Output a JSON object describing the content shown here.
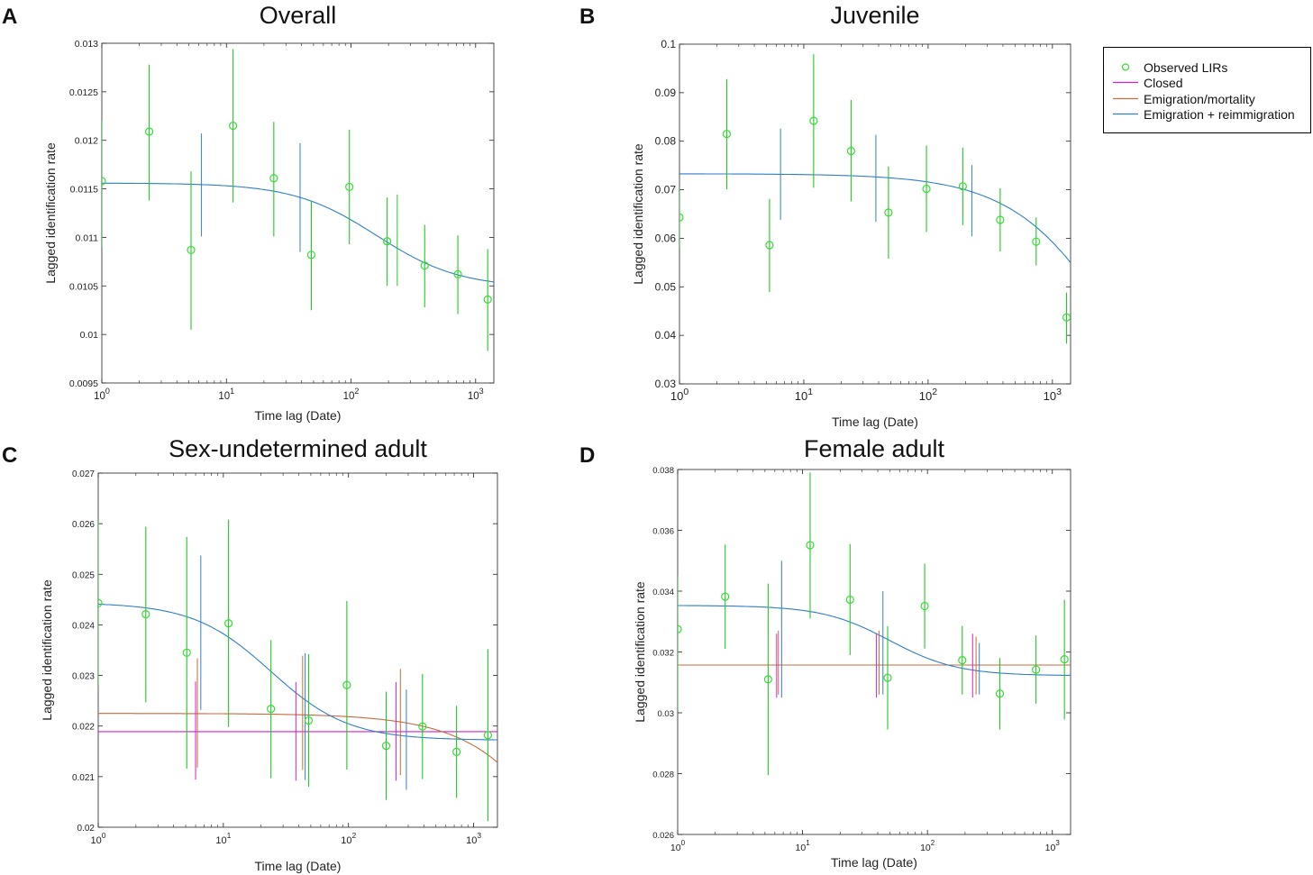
{
  "legend": {
    "observed": "Observed LIRs",
    "closed": "Closed",
    "emig_mort": "Emigration/mortality",
    "emig_reimm": "Emigration + reimmigration"
  },
  "colors": {
    "observed": "#33dd33",
    "observed_bar": "#22c922",
    "closed": "#d020d0",
    "emig_mort": "#c86a3a",
    "emig_reimm": "#2f7fc8"
  },
  "chart_data": [
    {
      "type": "scatter",
      "panel_letter": "A",
      "title": "Overall",
      "xlabel": "Time lag (Date)",
      "ylabel": "Lagged identification rate",
      "xscale": "log",
      "xlim": [
        1,
        1400
      ],
      "ylim": [
        0.0095,
        0.013
      ],
      "yticks": [
        0.0095,
        0.01,
        0.0105,
        0.011,
        0.0115,
        0.012,
        0.0125,
        0.013
      ],
      "ytick_labels": [
        "0.0095",
        "0.01",
        "0.0105",
        "0.011",
        "0.0115",
        "0.012",
        "0.0125",
        "0.013"
      ],
      "xtick_labels": [
        "10^0",
        "10^1",
        "10^2",
        "10^3"
      ],
      "observed": [
        {
          "x": 1.0,
          "y": 0.01158,
          "lo": 0.0109,
          "hi": 0.0122
        },
        {
          "x": 2.4,
          "y": 0.01209,
          "lo": 0.01138,
          "hi": 0.01278
        },
        {
          "x": 5.2,
          "y": 0.01087,
          "lo": 0.01005,
          "hi": 0.01168
        },
        {
          "x": 11.3,
          "y": 0.01215,
          "lo": 0.01136,
          "hi": 0.01294
        },
        {
          "x": 24,
          "y": 0.01161,
          "lo": 0.01101,
          "hi": 0.01219
        },
        {
          "x": 48,
          "y": 0.01082,
          "lo": 0.01025,
          "hi": 0.01138
        },
        {
          "x": 97,
          "y": 0.01152,
          "lo": 0.01093,
          "hi": 0.01211
        },
        {
          "x": 195,
          "y": 0.01096,
          "lo": 0.0105,
          "hi": 0.01141
        },
        {
          "x": 390,
          "y": 0.01071,
          "lo": 0.01028,
          "hi": 0.01113
        },
        {
          "x": 720,
          "y": 0.01062,
          "lo": 0.01021,
          "hi": 0.01102
        },
        {
          "x": 1250,
          "y": 0.01036,
          "lo": 0.00983,
          "hi": 0.01088
        }
      ],
      "model_bars": [
        {
          "series": "emig_reimm",
          "x": 6.3,
          "lo": 0.01101,
          "hi": 0.01207
        },
        {
          "series": "emig_reimm",
          "x": 39,
          "lo": 0.01085,
          "hi": 0.01197
        },
        {
          "series": "observed",
          "x": 235,
          "lo": 0.0105,
          "hi": 0.01144
        }
      ],
      "curves": [
        {
          "series": "emig_reimm",
          "base": 0.01048,
          "amp": 0.00108,
          "tau": 160,
          "power": 1.3
        }
      ]
    },
    {
      "type": "scatter",
      "panel_letter": "B",
      "title": "Juvenile",
      "xlabel": "Time lag (Date)",
      "ylabel": "Lagged identification rate",
      "xscale": "log",
      "xlim": [
        1,
        1400
      ],
      "ylim": [
        0.03,
        0.1
      ],
      "yticks": [
        0.03,
        0.04,
        0.05,
        0.06,
        0.07,
        0.08,
        0.09,
        0.1
      ],
      "ytick_labels": [
        "0.03",
        "0.04",
        "0.05",
        "0.06",
        "0.07",
        "0.08",
        "0.09",
        "0.1"
      ],
      "xtick_labels": [
        "10^0",
        "10^1",
        "10^2",
        "10^3"
      ],
      "observed": [
        {
          "x": 1.0,
          "y": 0.0643,
          "lo": 0.058,
          "hi": 0.0705
        },
        {
          "x": 2.4,
          "y": 0.0815,
          "lo": 0.0701,
          "hi": 0.0928
        },
        {
          "x": 5.3,
          "y": 0.0586,
          "lo": 0.0489,
          "hi": 0.0681
        },
        {
          "x": 12,
          "y": 0.0842,
          "lo": 0.0704,
          "hi": 0.0979
        },
        {
          "x": 24,
          "y": 0.078,
          "lo": 0.0676,
          "hi": 0.0885
        },
        {
          "x": 48,
          "y": 0.0653,
          "lo": 0.0558,
          "hi": 0.0748
        },
        {
          "x": 97,
          "y": 0.0702,
          "lo": 0.0613,
          "hi": 0.0791
        },
        {
          "x": 190,
          "y": 0.0707,
          "lo": 0.0627,
          "hi": 0.0787
        },
        {
          "x": 380,
          "y": 0.0638,
          "lo": 0.0573,
          "hi": 0.0703
        },
        {
          "x": 740,
          "y": 0.0593,
          "lo": 0.0544,
          "hi": 0.0643
        },
        {
          "x": 1300,
          "y": 0.0437,
          "lo": 0.0383,
          "hi": 0.0488
        }
      ],
      "model_bars": [
        {
          "series": "emig_reimm",
          "x": 6.5,
          "lo": 0.0638,
          "hi": 0.0826
        },
        {
          "series": "emig_reimm",
          "x": 38,
          "lo": 0.0634,
          "hi": 0.0813
        },
        {
          "series": "emig_reimm",
          "x": 225,
          "lo": 0.0604,
          "hi": 0.0751
        }
      ],
      "curves": [
        {
          "series": "emig_reimm",
          "base": 0.0,
          "amp": 0.0733,
          "tau": 4200,
          "power": 1.0
        }
      ]
    },
    {
      "type": "scatter",
      "panel_letter": "C",
      "title": "Sex-undetermined adult",
      "xlabel": "Time lag (Date)",
      "ylabel": "Lagged identification rate",
      "xscale": "log",
      "xlim": [
        1,
        1550
      ],
      "ylim": [
        0.02,
        0.027
      ],
      "yticks": [
        0.02,
        0.021,
        0.022,
        0.023,
        0.024,
        0.025,
        0.026,
        0.027
      ],
      "ytick_labels": [
        "0.02",
        "0.021",
        "0.022",
        "0.023",
        "0.024",
        "0.025",
        "0.026",
        "0.027"
      ],
      "xtick_labels": [
        "10^0",
        "10^1",
        "10^2",
        "10^3"
      ],
      "observed": [
        {
          "x": 1.0,
          "y": 0.02443,
          "lo": 0.0228,
          "hi": 0.02605
        },
        {
          "x": 2.4,
          "y": 0.02421,
          "lo": 0.02247,
          "hi": 0.02594
        },
        {
          "x": 5.1,
          "y": 0.02345,
          "lo": 0.02116,
          "hi": 0.02574
        },
        {
          "x": 11,
          "y": 0.02403,
          "lo": 0.02198,
          "hi": 0.02608
        },
        {
          "x": 24,
          "y": 0.02234,
          "lo": 0.02097,
          "hi": 0.0237
        },
        {
          "x": 48,
          "y": 0.02211,
          "lo": 0.0208,
          "hi": 0.02342
        },
        {
          "x": 97,
          "y": 0.02281,
          "lo": 0.02114,
          "hi": 0.02447
        },
        {
          "x": 200,
          "y": 0.02161,
          "lo": 0.02054,
          "hi": 0.02268
        },
        {
          "x": 390,
          "y": 0.02199,
          "lo": 0.02095,
          "hi": 0.02303
        },
        {
          "x": 730,
          "y": 0.02149,
          "lo": 0.02058,
          "hi": 0.0224
        },
        {
          "x": 1300,
          "y": 0.02182,
          "lo": 0.02012,
          "hi": 0.02352
        }
      ],
      "model_bars": [
        {
          "series": "closed",
          "x": 6.0,
          "lo": 0.02094,
          "hi": 0.02288
        },
        {
          "series": "emig_mort",
          "x": 6.2,
          "lo": 0.02118,
          "hi": 0.02334
        },
        {
          "series": "emig_reimm",
          "x": 6.6,
          "lo": 0.02232,
          "hi": 0.02537
        },
        {
          "series": "closed",
          "x": 38,
          "lo": 0.02092,
          "hi": 0.02287
        },
        {
          "series": "emig_mort",
          "x": 43,
          "lo": 0.02113,
          "hi": 0.02339
        },
        {
          "series": "emig_reimm",
          "x": 45,
          "lo": 0.02093,
          "hi": 0.02344
        },
        {
          "series": "closed",
          "x": 240,
          "lo": 0.02092,
          "hi": 0.02287
        },
        {
          "series": "emig_mort",
          "x": 260,
          "lo": 0.02103,
          "hi": 0.02313
        },
        {
          "series": "emig_reimm",
          "x": 290,
          "lo": 0.02074,
          "hi": 0.02272
        }
      ],
      "curves": [
        {
          "series": "closed",
          "base": 0.02189,
          "amp": 0.0,
          "tau": 1000,
          "power": 1.0
        },
        {
          "series": "emig_mort",
          "base": 0.0,
          "amp": 0.02225,
          "tau": 34000,
          "power": 1.0
        },
        {
          "series": "emig_reimm",
          "base": 0.02172,
          "amp": 0.00272,
          "tau": 24,
          "power": 1.4
        }
      ]
    },
    {
      "type": "scatter",
      "panel_letter": "D",
      "title": "Female adult",
      "xlabel": "Time lag (Date)",
      "ylabel": "Lagged identification rate",
      "xscale": "log",
      "xlim": [
        1,
        1400
      ],
      "ylim": [
        0.026,
        0.038
      ],
      "yticks": [
        0.026,
        0.028,
        0.03,
        0.032,
        0.034,
        0.036,
        0.038
      ],
      "ytick_labels": [
        "0.026",
        "0.028",
        "0.03",
        "0.032",
        "0.034",
        "0.036",
        "0.038"
      ],
      "xtick_labels": [
        "10^0",
        "10^1",
        "10^2",
        "10^3"
      ],
      "observed": [
        {
          "x": 1.0,
          "y": 0.03275,
          "lo": 0.0301,
          "hi": 0.0345
        },
        {
          "x": 2.4,
          "y": 0.03382,
          "lo": 0.0321,
          "hi": 0.03553
        },
        {
          "x": 5.3,
          "y": 0.0311,
          "lo": 0.02795,
          "hi": 0.03425
        },
        {
          "x": 11.5,
          "y": 0.03551,
          "lo": 0.0331,
          "hi": 0.0379
        },
        {
          "x": 24,
          "y": 0.03372,
          "lo": 0.0319,
          "hi": 0.03555
        },
        {
          "x": 48,
          "y": 0.03115,
          "lo": 0.02945,
          "hi": 0.03285
        },
        {
          "x": 95,
          "y": 0.03351,
          "lo": 0.03211,
          "hi": 0.0349
        },
        {
          "x": 190,
          "y": 0.03173,
          "lo": 0.0306,
          "hi": 0.03286
        },
        {
          "x": 380,
          "y": 0.03063,
          "lo": 0.02945,
          "hi": 0.0318
        },
        {
          "x": 740,
          "y": 0.03142,
          "lo": 0.0303,
          "hi": 0.03254
        },
        {
          "x": 1250,
          "y": 0.03176,
          "lo": 0.02978,
          "hi": 0.03372
        }
      ],
      "model_bars": [
        {
          "series": "closed",
          "x": 6.2,
          "lo": 0.0305,
          "hi": 0.0326
        },
        {
          "series": "emig_mort",
          "x": 6.4,
          "lo": 0.0306,
          "hi": 0.0327
        },
        {
          "series": "emig_reimm",
          "x": 6.8,
          "lo": 0.0305,
          "hi": 0.035
        },
        {
          "series": "closed",
          "x": 39,
          "lo": 0.0305,
          "hi": 0.0326
        },
        {
          "series": "emig_mort",
          "x": 41,
          "lo": 0.0306,
          "hi": 0.0327
        },
        {
          "series": "emig_reimm",
          "x": 44,
          "lo": 0.0306,
          "hi": 0.034
        },
        {
          "series": "closed",
          "x": 230,
          "lo": 0.0305,
          "hi": 0.0326
        },
        {
          "series": "emig_mort",
          "x": 245,
          "lo": 0.0306,
          "hi": 0.0325
        },
        {
          "series": "emig_reimm",
          "x": 260,
          "lo": 0.0306,
          "hi": 0.0323
        }
      ],
      "curves": [
        {
          "series": "closed",
          "base": 0.03157,
          "amp": 0.0,
          "tau": 1000,
          "power": 1.0
        },
        {
          "series": "emig_mort",
          "base": 0.03157,
          "amp": 0.0,
          "tau": 1000,
          "power": 1.0
        },
        {
          "series": "emig_reimm",
          "base": 0.03122,
          "amp": 0.00231,
          "tau": 50,
          "power": 1.6
        }
      ]
    }
  ]
}
